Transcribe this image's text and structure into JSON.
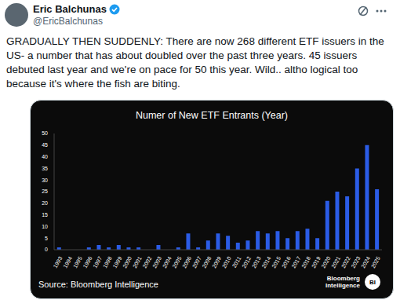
{
  "tweet": {
    "name": "Eric Balchunas",
    "handle": "@EricBalchunas",
    "text": "GRADUALLY THEN SUDDENLY: There are now 268 different ETF issuers in the US- a number that has about doubled over the past three years. 45 issuers debuted last year and we're on pace for 50 this year. Wild.. altho logical too because it's where the fish are biting."
  },
  "chart_data": {
    "type": "bar",
    "title": "Numer of New ETF Entrants (Year)",
    "categories": [
      "1993",
      "1994",
      "1995",
      "1996",
      "1997",
      "1998",
      "1999",
      "2000",
      "2001",
      "2002",
      "2003",
      "2004",
      "2005",
      "2006",
      "2007",
      "2008",
      "2009",
      "2010",
      "2011",
      "2012",
      "2013",
      "2014",
      "2015",
      "2016",
      "2017",
      "2018",
      "2019",
      "2020",
      "2021",
      "2022",
      "2023",
      "2024",
      "2025"
    ],
    "values": [
      1,
      0,
      0,
      1,
      2,
      1,
      2,
      1,
      1,
      0,
      2,
      0,
      1,
      7,
      1,
      4,
      7,
      6,
      3,
      4,
      8,
      7,
      8,
      5,
      8,
      9,
      5,
      21,
      25,
      23,
      35,
      45,
      26
    ],
    "color": "#2b5ce6",
    "ylim": [
      0,
      50
    ],
    "yticks": [
      0,
      5,
      10,
      15,
      20,
      25,
      30,
      35,
      40,
      45,
      50
    ],
    "grid": false
  },
  "chart_footer": {
    "source": "Source: Bloomberg Intelligence",
    "logo": "Bloomberg Intelligence",
    "badge": "BI"
  }
}
